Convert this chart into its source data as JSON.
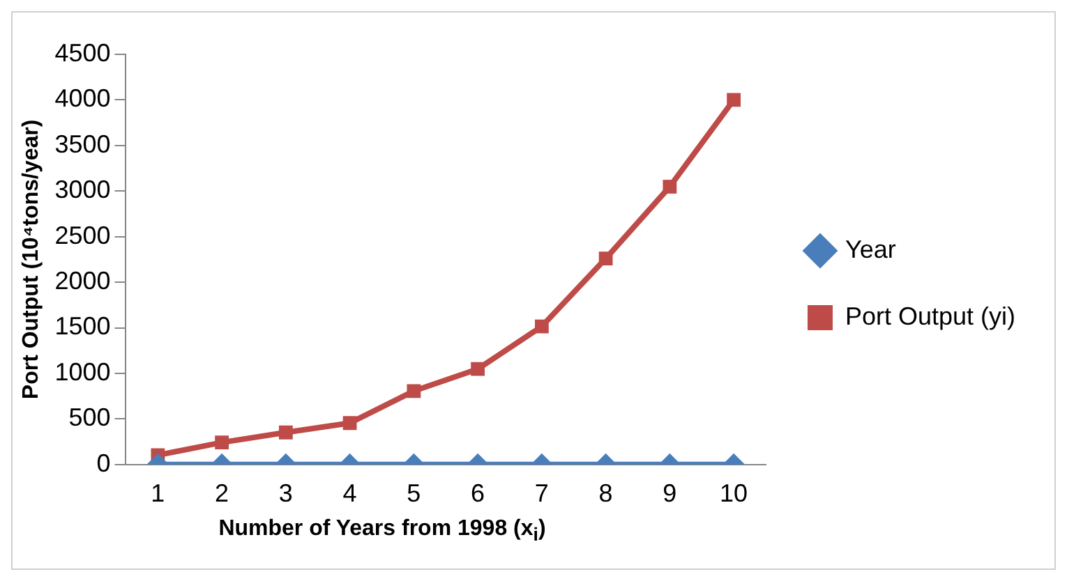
{
  "chart_data": {
    "type": "line",
    "xlabel": "Number of Years from 1998 (x$_{i}$)",
    "ylabel": "Port Output (10⁴tons/year)",
    "categories": [
      "1",
      "2",
      "3",
      "4",
      "5",
      "6",
      "7",
      "8",
      "9",
      "10"
    ],
    "series": [
      {
        "name": "Year",
        "color": "#4a7ebb",
        "marker": "diamond",
        "values": [
          0,
          0,
          0,
          0,
          0,
          0,
          0,
          0,
          0,
          0
        ]
      },
      {
        "name": "Port Output (yi)",
        "color": "#be4b48",
        "marker": "square",
        "values": [
          103,
          242,
          352,
          455,
          806,
          1048,
          1515,
          2260,
          3048,
          4000
        ]
      }
    ],
    "ylim": [
      0,
      4500
    ],
    "yticks": [
      0,
      500,
      1000,
      1500,
      2000,
      2500,
      3000,
      3500,
      4000,
      4500
    ],
    "grid": false,
    "legend": "right",
    "line_style": "solid"
  }
}
